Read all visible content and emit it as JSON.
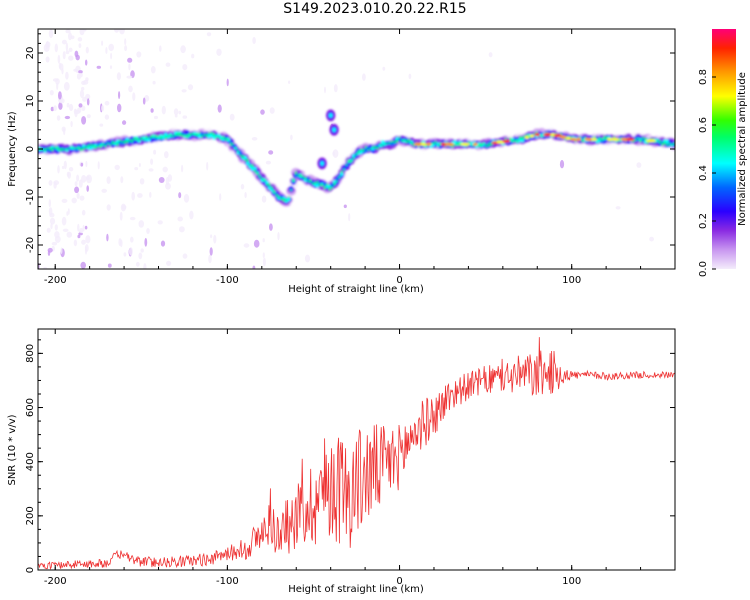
{
  "title": "S149.2023.010.20.22.R15",
  "chart_data": [
    {
      "type": "heatmap",
      "xlabel": "Height of straight line (km)",
      "ylabel": "Frequency (Hz)",
      "xlim": [
        -210,
        160
      ],
      "ylim": [
        -25,
        25
      ],
      "xticks": [
        -200,
        -100,
        0,
        100
      ],
      "yticks": [
        -20,
        -10,
        0,
        10,
        20
      ],
      "colorbar": {
        "label": "Normalized spectral amplitude",
        "range": [
          0,
          1
        ],
        "ticks": [
          "0.0",
          "0.2",
          "0.4",
          "0.6",
          "0.8"
        ]
      },
      "ridge": {
        "x": [
          -210,
          -190,
          -170,
          -150,
          -130,
          -110,
          -100,
          -90,
          -80,
          -70,
          -65,
          -60,
          -50,
          -40,
          -35,
          -30,
          -25,
          -20,
          -15,
          -10,
          -5,
          0,
          10,
          30,
          50,
          70,
          80,
          90,
          100,
          120,
          140,
          160
        ],
        "y": [
          0,
          0,
          1,
          2,
          3,
          3,
          2,
          -2,
          -6,
          -10,
          -11,
          -5,
          -7,
          -8,
          -6,
          -3,
          -1,
          0,
          0,
          1,
          1,
          2,
          1,
          1,
          1,
          2,
          3,
          3,
          2,
          2,
          2,
          1
        ]
      },
      "blobs": [
        {
          "x": -40,
          "y": 7
        },
        {
          "x": -38,
          "y": 4
        },
        {
          "x": -45,
          "y": -3
        }
      ]
    },
    {
      "type": "line",
      "xlabel": "Height of straight line (km)",
      "ylabel": "SNR (10 * v/v)",
      "xlim": [
        -210,
        160
      ],
      "ylim": [
        0,
        890
      ],
      "xticks": [
        -200,
        -100,
        0,
        100
      ],
      "yticks": [
        0,
        200,
        400,
        600,
        800
      ],
      "color": "#ee3333",
      "series": {
        "x": [
          -210,
          -190,
          -170,
          -163,
          -160,
          -150,
          -130,
          -110,
          -100,
          -90,
          -80,
          -75,
          -70,
          -60,
          -50,
          -40,
          -30,
          -20,
          -10,
          0,
          10,
          20,
          30,
          40,
          50,
          60,
          70,
          80,
          90,
          100,
          110,
          120,
          140,
          160
        ],
        "y": [
          15,
          20,
          25,
          60,
          50,
          30,
          30,
          40,
          60,
          80,
          130,
          180,
          120,
          200,
          250,
          330,
          280,
          350,
          380,
          420,
          520,
          570,
          650,
          680,
          700,
          710,
          720,
          720,
          730,
          720,
          720,
          715,
          720,
          720
        ]
      },
      "noise_amplitude": {
        "x": [
          -210,
          -100,
          -80,
          -60,
          -40,
          -20,
          0,
          20,
          40,
          60,
          80,
          90,
          100,
          160
        ],
        "y": [
          12,
          25,
          70,
          120,
          220,
          200,
          120,
          80,
          50,
          60,
          90,
          80,
          15,
          12
        ]
      }
    }
  ]
}
